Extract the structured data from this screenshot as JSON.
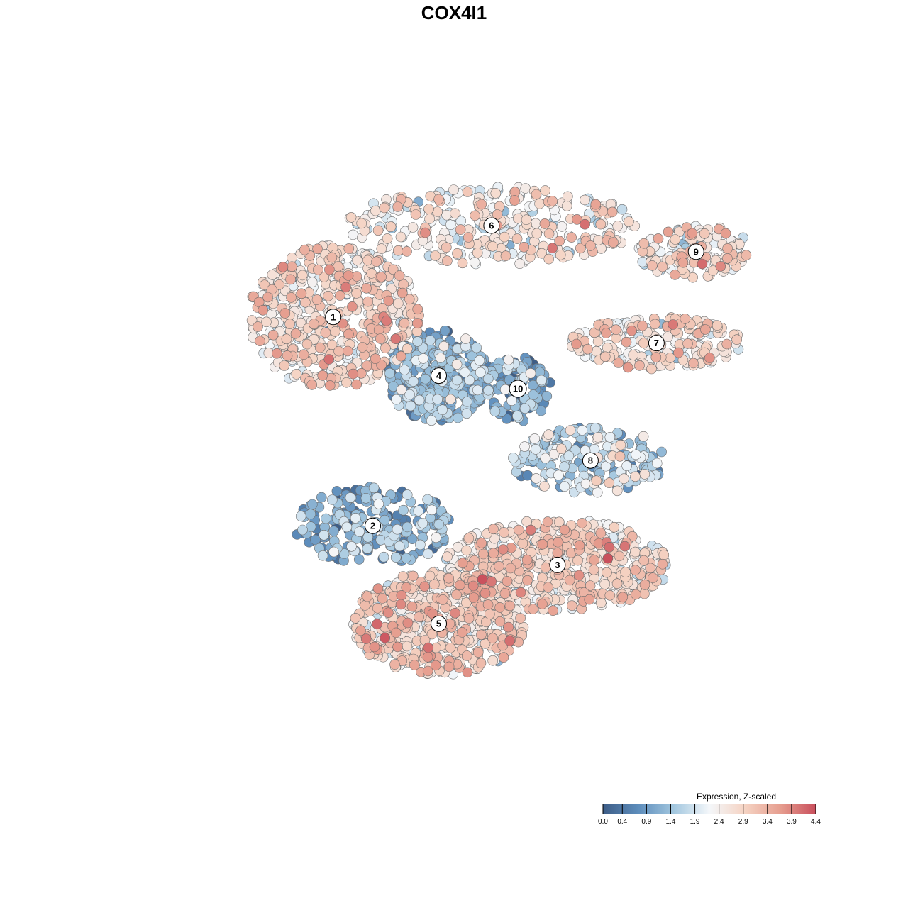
{
  "chart_data": {
    "type": "scatter",
    "title": "COX4I1",
    "xlabel": "",
    "ylabel": "",
    "xlim": [
      -50,
      50
    ],
    "ylim": [
      -50,
      50
    ],
    "grid": false,
    "colorbar": {
      "title": "Expression, Z-scaled",
      "min": 0.0,
      "max": 4.4,
      "ticks": [
        0.0,
        0.4,
        0.9,
        1.4,
        1.9,
        2.4,
        2.9,
        3.4,
        3.9,
        4.4
      ],
      "tick_labels": [
        "0.0",
        "0.4",
        "0.9",
        "1.4",
        "1.9",
        "2.4",
        "2.9",
        "3.4",
        "3.9",
        "4.4"
      ],
      "colors": [
        "#3d5d87",
        "#5d8dbc",
        "#a3c7df",
        "#f4f7fa",
        "#f5d3c3",
        "#e69e8f",
        "#c94f5c"
      ],
      "placement": "bottom-right"
    },
    "clusters": [
      {
        "label": "1",
        "x": -21,
        "y": 21,
        "rx": 13,
        "ry": 11,
        "mean": 2.7,
        "n": 520
      },
      {
        "label": "2",
        "x": -15,
        "y": -11,
        "rx": 12,
        "ry": 6,
        "mean": 1.1,
        "n": 230
      },
      {
        "label": "3",
        "x": 13,
        "y": -17,
        "rx": 17,
        "ry": 7,
        "mean": 2.7,
        "n": 560
      },
      {
        "label": "4",
        "x": -5,
        "y": 12,
        "rx": 8,
        "ry": 7,
        "mean": 1.1,
        "n": 360
      },
      {
        "label": "5",
        "x": -5,
        "y": -26,
        "rx": 13,
        "ry": 8,
        "mean": 2.8,
        "n": 520
      },
      {
        "label": "6",
        "x": 3,
        "y": 35,
        "rx": 22,
        "ry": 6,
        "mean": 2.5,
        "n": 320
      },
      {
        "label": "7",
        "x": 28,
        "y": 17,
        "rx": 13,
        "ry": 4,
        "mean": 2.6,
        "n": 210
      },
      {
        "label": "8",
        "x": 18,
        "y": -1,
        "rx": 12,
        "ry": 5,
        "mean": 1.6,
        "n": 190
      },
      {
        "label": "9",
        "x": 34,
        "y": 31,
        "rx": 9,
        "ry": 4,
        "mean": 2.5,
        "n": 140
      },
      {
        "label": "10",
        "x": 7,
        "y": 10,
        "rx": 5,
        "ry": 5,
        "mean": 1.0,
        "n": 110
      }
    ]
  }
}
